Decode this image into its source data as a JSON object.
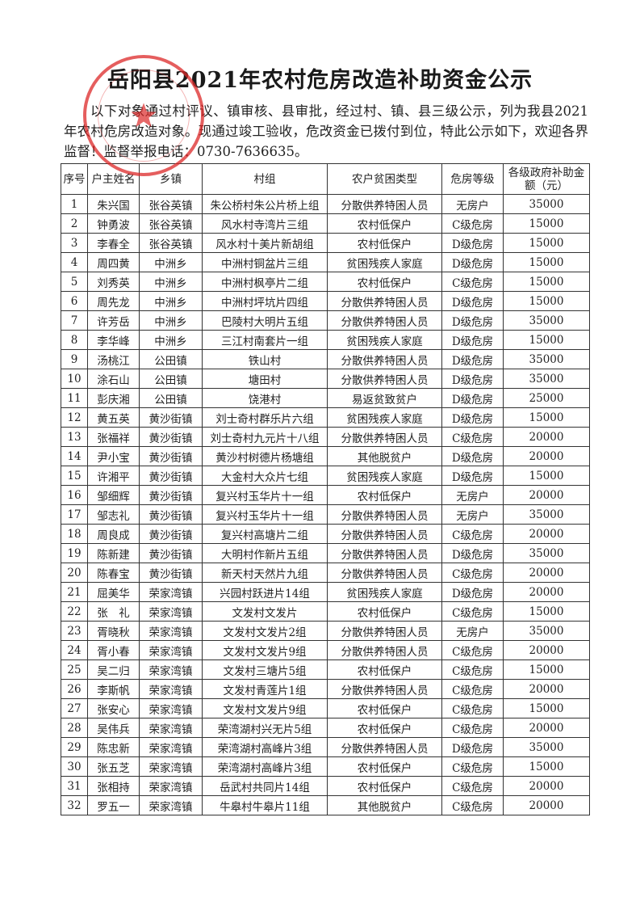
{
  "title": "岳阳县2021年农村危房改造补助资金公示",
  "intro": "以下对象通过村评议、镇审核、县审批，经过村、镇、县三级公示，列为我县2021年农村危房改造对象。现通过竣工验收，危改资金已拨付到位，特此公示如下，欢迎各界监督！监督举报电话：0730-7636635。",
  "stamp_color": "#dc2828",
  "table": {
    "headers": [
      "序号",
      "户主姓名",
      "乡镇",
      "村组",
      "农户贫困类型",
      "危房等级",
      "各级政府补助金额（元）"
    ],
    "rows": [
      [
        "1",
        "朱兴国",
        "张谷英镇",
        "朱公桥村朱公片桥上组",
        "分散供养特困人员",
        "无房户",
        "35000"
      ],
      [
        "2",
        "钟勇波",
        "张谷英镇",
        "风水村寺湾片三组",
        "农村低保户",
        "C级危房",
        "15000"
      ],
      [
        "3",
        "李春全",
        "张谷英镇",
        "风水村十美片新胡组",
        "农村低保户",
        "D级危房",
        "15000"
      ],
      [
        "4",
        "周四黄",
        "中洲乡",
        "中洲村铜盆片三组",
        "贫困残疾人家庭",
        "D级危房",
        "15000"
      ],
      [
        "5",
        "刘秀英",
        "中洲乡",
        "中洲村枫亭片二组",
        "农村低保户",
        "C级危房",
        "15000"
      ],
      [
        "6",
        "周先龙",
        "中洲乡",
        "中洲村坪坑片四组",
        "分散供养特困人员",
        "D级危房",
        "15000"
      ],
      [
        "7",
        "许芳岳",
        "中洲乡",
        "巴陵村大明片五组",
        "分散供养特困人员",
        "D级危房",
        "35000"
      ],
      [
        "8",
        "李华峰",
        "中洲乡",
        "三江村南套片一组",
        "贫困残疾人家庭",
        "D级危房",
        "15000"
      ],
      [
        "9",
        "汤桃江",
        "公田镇",
        "铁山村",
        "分散供养特困人员",
        "D级危房",
        "35000"
      ],
      [
        "10",
        "涂石山",
        "公田镇",
        "塘田村",
        "分散供养特困人员",
        "D级危房",
        "35000"
      ],
      [
        "11",
        "彭庆湘",
        "公田镇",
        "饶港村",
        "易返贫致贫户",
        "D级危房",
        "25000"
      ],
      [
        "12",
        "黄五英",
        "黄沙街镇",
        "刘士奇村群乐片六组",
        "贫困残疾人家庭",
        "D级危房",
        "15000"
      ],
      [
        "13",
        "张福祥",
        "黄沙街镇",
        "刘士奇村九元片十八组",
        "分散供养特困人员",
        "C级危房",
        "20000"
      ],
      [
        "14",
        "尹小宝",
        "黄沙街镇",
        "黄沙村树德片杨塘组",
        "其他脱贫户",
        "D级危房",
        "20000"
      ],
      [
        "15",
        "许湘平",
        "黄沙街镇",
        "大金村大众片七组",
        "贫困残疾人家庭",
        "D级危房",
        "15000"
      ],
      [
        "16",
        "邹细辉",
        "黄沙街镇",
        "复兴村玉华片十一组",
        "农村低保户",
        "无房户",
        "20000"
      ],
      [
        "17",
        "邹志礼",
        "黄沙街镇",
        "复兴村玉华片十一组",
        "分散供养特困人员",
        "无房户",
        "35000"
      ],
      [
        "18",
        "周良成",
        "黄沙街镇",
        "复兴村高塘片二组",
        "分散供养特困人员",
        "C级危房",
        "20000"
      ],
      [
        "19",
        "陈新建",
        "黄沙街镇",
        "大明村作新片五组",
        "分散供养特困人员",
        "D级危房",
        "35000"
      ],
      [
        "20",
        "陈春宝",
        "黄沙街镇",
        "新天村天然片九组",
        "分散供养特困人员",
        "C级危房",
        "20000"
      ],
      [
        "21",
        "屈美华",
        "荣家湾镇",
        "兴园村跃进片14组",
        "贫困残疾人家庭",
        "D级危房",
        "20000"
      ],
      [
        "22",
        "张　礼",
        "荣家湾镇",
        "文发村文发片",
        "农村低保户",
        "C级危房",
        "15000"
      ],
      [
        "23",
        "胥晓秋",
        "荣家湾镇",
        "文发村文发片2组",
        "分散供养特困人员",
        "无房户",
        "35000"
      ],
      [
        "24",
        "胥小春",
        "荣家湾镇",
        "文发村文发片9组",
        "分散供养特困人员",
        "C级危房",
        "20000"
      ],
      [
        "25",
        "吴二归",
        "荣家湾镇",
        "文发村三塘片5组",
        "农村低保户",
        "C级危房",
        "15000"
      ],
      [
        "26",
        "李斯帆",
        "荣家湾镇",
        "文发村青莲片1组",
        "分散供养特困人员",
        "C级危房",
        "20000"
      ],
      [
        "27",
        "张安心",
        "荣家湾镇",
        "文发村文发片9组",
        "农村低保户",
        "C级危房",
        "15000"
      ],
      [
        "28",
        "吴伟兵",
        "荣家湾镇",
        "荣湾湖村兴无片5组",
        "农村低保户",
        "C级危房",
        "20000"
      ],
      [
        "29",
        "陈忠新",
        "荣家湾镇",
        "荣湾湖村高峰片3组",
        "分散供养特困人员",
        "D级危房",
        "35000"
      ],
      [
        "30",
        "张五芝",
        "荣家湾镇",
        "荣湾湖村高峰片3组",
        "农村低保户",
        "C级危房",
        "15000"
      ],
      [
        "31",
        "张相持",
        "荣家湾镇",
        "岳武村共同片14组",
        "农村低保户",
        "C级危房",
        "20000"
      ],
      [
        "32",
        "罗五一",
        "荣家湾镇",
        "牛皋村牛皋片11组",
        "其他脱贫户",
        "C级危房",
        "20000"
      ]
    ]
  }
}
